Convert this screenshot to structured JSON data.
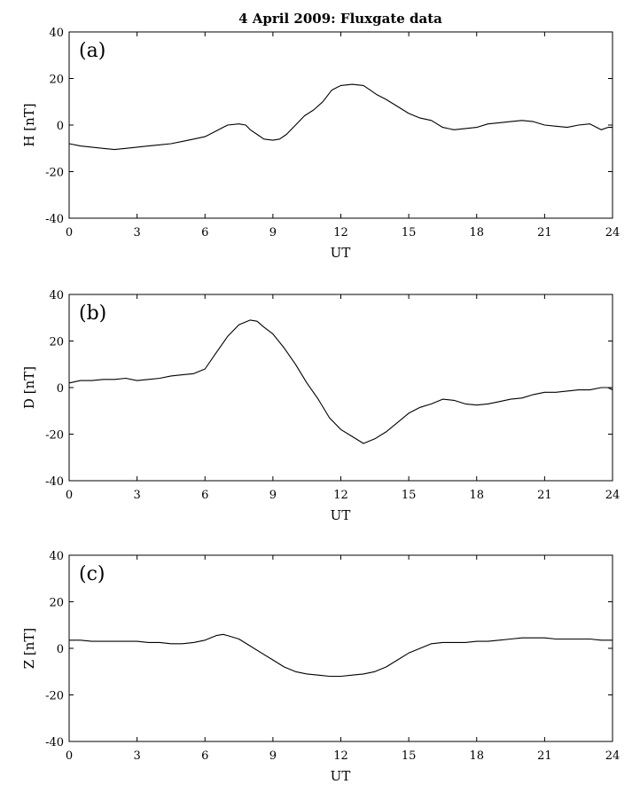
{
  "figure": {
    "title": "4 April  2009: Fluxgate data"
  },
  "chart_data": [
    {
      "type": "line",
      "panel_label": "(a)",
      "title": "",
      "xlabel": "UT",
      "ylabel": "H [nT]",
      "xlim": [
        0,
        24
      ],
      "ylim": [
        -40,
        40
      ],
      "xticks": [
        0,
        3,
        6,
        9,
        12,
        15,
        18,
        21,
        24
      ],
      "yticks": [
        -40,
        -20,
        0,
        20,
        40
      ],
      "grid": false,
      "series": [
        {
          "name": "",
          "color": "#000000",
          "x": [
            0,
            0.5,
            1,
            1.5,
            2,
            2.5,
            3,
            3.5,
            4,
            4.5,
            5,
            5.5,
            6,
            6.5,
            7,
            7.5,
            7.8,
            8,
            8.3,
            8.6,
            9,
            9.3,
            9.6,
            10,
            10.4,
            10.8,
            11.2,
            11.6,
            12,
            12.5,
            13,
            13.3,
            13.6,
            14,
            14.5,
            15,
            15.5,
            16,
            16.5,
            17,
            17.5,
            18,
            18.5,
            19,
            19.5,
            20,
            20.5,
            21,
            21.5,
            22,
            22.5,
            23,
            23.5,
            23.8,
            24
          ],
          "y": [
            -8,
            -9,
            -9.5,
            -10,
            -10.5,
            -10,
            -9.5,
            -9,
            -8.5,
            -8,
            -7,
            -6,
            -5,
            -2.5,
            0,
            0.5,
            0,
            -2,
            -4,
            -6,
            -6.5,
            -6,
            -4,
            0,
            4,
            6.5,
            10,
            15,
            17,
            17.5,
            17,
            15,
            13,
            11,
            8,
            5,
            3,
            2,
            -1,
            -2,
            -1.5,
            -1,
            0.5,
            1,
            1.5,
            2,
            1.5,
            0,
            -0.5,
            -1,
            0,
            0.5,
            -2,
            -1,
            -1
          ]
        }
      ]
    },
    {
      "type": "line",
      "panel_label": "(b)",
      "title": "",
      "xlabel": "UT",
      "ylabel": "D [nT]",
      "xlim": [
        0,
        24
      ],
      "ylim": [
        -40,
        40
      ],
      "xticks": [
        0,
        3,
        6,
        9,
        12,
        15,
        18,
        21,
        24
      ],
      "yticks": [
        -40,
        -20,
        0,
        20,
        40
      ],
      "grid": false,
      "series": [
        {
          "name": "",
          "color": "#000000",
          "x": [
            0,
            0.5,
            1,
            1.5,
            2,
            2.5,
            3,
            3.5,
            4,
            4.5,
            5,
            5.5,
            6,
            6.5,
            7,
            7.5,
            8,
            8.3,
            8.6,
            9,
            9.5,
            10,
            10.5,
            11,
            11.5,
            12,
            12.5,
            13,
            13.5,
            14,
            14.5,
            15,
            15.5,
            16,
            16.5,
            17,
            17.5,
            18,
            18.5,
            19,
            19.5,
            20,
            20.5,
            21,
            21.5,
            22,
            22.5,
            23,
            23.5,
            23.8,
            24
          ],
          "y": [
            2,
            3,
            3,
            3.5,
            3.5,
            4,
            3,
            3.5,
            4,
            5,
            5.5,
            6,
            8,
            15,
            22,
            27,
            29,
            28.5,
            26,
            23,
            17,
            10,
            2,
            -5,
            -13,
            -18,
            -21,
            -24,
            -22,
            -19,
            -15,
            -11,
            -8.5,
            -7,
            -5,
            -5.5,
            -7,
            -7.5,
            -7,
            -6,
            -5,
            -4.5,
            -3,
            -2,
            -2,
            -1.5,
            -1,
            -1,
            0,
            0,
            -1
          ]
        }
      ]
    },
    {
      "type": "line",
      "panel_label": "(c)",
      "title": "",
      "xlabel": "UT",
      "ylabel": "Z [nT]",
      "xlim": [
        0,
        24
      ],
      "ylim": [
        -40,
        40
      ],
      "xticks": [
        0,
        3,
        6,
        9,
        12,
        15,
        18,
        21,
        24
      ],
      "yticks": [
        -40,
        -20,
        0,
        20,
        40
      ],
      "grid": false,
      "series": [
        {
          "name": "",
          "color": "#000000",
          "x": [
            0,
            0.5,
            1,
            1.5,
            2,
            2.5,
            3,
            3.5,
            4,
            4.5,
            5,
            5.5,
            6,
            6.5,
            6.8,
            7,
            7.5,
            8,
            8.5,
            9,
            9.5,
            10,
            10.5,
            11,
            11.5,
            12,
            12.5,
            13,
            13.5,
            14,
            14.5,
            15,
            15.5,
            16,
            16.5,
            17,
            17.5,
            18,
            18.5,
            19,
            19.5,
            20,
            20.5,
            21,
            21.5,
            22,
            22.5,
            23,
            23.5,
            24
          ],
          "y": [
            3.5,
            3.5,
            3,
            3,
            3,
            3,
            3,
            2.5,
            2.5,
            2,
            2,
            2.5,
            3.5,
            5.5,
            6,
            5.5,
            4,
            1,
            -2,
            -5,
            -8,
            -10,
            -11,
            -11.5,
            -12,
            -12,
            -11.5,
            -11,
            -10,
            -8,
            -5,
            -2,
            0,
            2,
            2.5,
            2.5,
            2.5,
            3,
            3,
            3.5,
            4,
            4.5,
            4.5,
            4.5,
            4,
            4,
            4,
            4,
            3.5,
            3.5
          ]
        }
      ]
    }
  ]
}
